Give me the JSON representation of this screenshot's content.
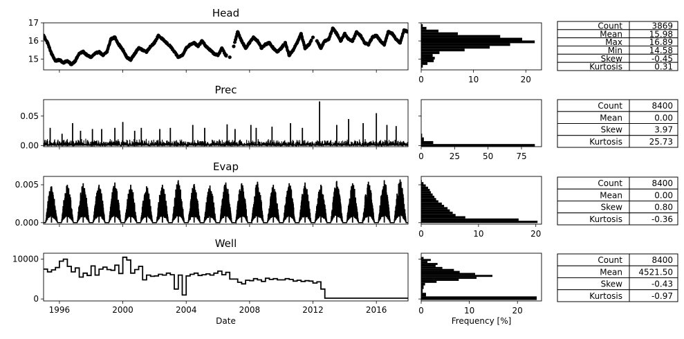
{
  "chart_data": [
    {
      "type": "line",
      "title": "Head",
      "xlabel": "",
      "ylabel": "",
      "x_range": [
        "1995-01-01",
        "2018-01-01"
      ],
      "ylim": [
        14.4,
        17.0
      ],
      "yticks": [
        "15",
        "16",
        "17"
      ],
      "series": [
        {
          "style": "markers",
          "x": [
            "1995-01",
            "1995-04",
            "1995-07",
            "1995-10",
            "1996-01",
            "1996-04",
            "1996-07",
            "1996-10",
            "1997-01",
            "1997-04",
            "1997-07",
            "1997-10",
            "1998-01",
            "1998-04",
            "1998-07",
            "1998-10",
            "1999-01",
            "1999-04",
            "1999-07",
            "1999-10",
            "2000-01",
            "2000-04",
            "2000-07",
            "2000-10",
            "2001-01",
            "2001-04",
            "2001-07",
            "2001-10",
            "2002-01",
            "2002-04",
            "2002-07",
            "2002-10",
            "2003-01",
            "2003-04",
            "2003-07",
            "2003-10",
            "2004-01",
            "2004-04",
            "2004-07",
            "2004-10",
            "2005-01",
            "2005-04",
            "2005-07",
            "2005-10",
            "2006-01",
            "2006-04",
            "2006-07",
            "2006-10",
            "2007-01",
            "2007-04",
            "2007-07",
            "2007-10",
            "2008-01",
            "2008-04",
            "2008-07",
            "2008-10",
            "2009-01",
            "2009-04",
            "2009-07",
            "2009-10",
            "2010-01",
            "2010-04",
            "2010-07",
            "2010-10",
            "2011-01",
            "2011-04",
            "2011-07",
            "2011-10",
            "2012-01",
            "2012-04",
            "2012-07",
            "2012-10",
            "2013-01",
            "2013-04",
            "2013-07",
            "2013-10",
            "2014-01",
            "2014-04",
            "2014-07",
            "2014-10",
            "2015-01",
            "2015-04",
            "2015-07",
            "2015-10",
            "2016-01",
            "2016-04",
            "2016-07",
            "2016-10",
            "2017-01",
            "2017-04",
            "2017-07",
            "2017-10",
            "2018-01"
          ],
          "y": [
            16.3,
            15.9,
            15.3,
            14.9,
            14.95,
            14.8,
            14.9,
            14.7,
            14.9,
            15.3,
            15.4,
            15.2,
            15.1,
            15.3,
            15.4,
            15.2,
            15.4,
            16.1,
            16.2,
            15.8,
            15.5,
            15.1,
            14.95,
            15.3,
            15.6,
            15.5,
            15.4,
            15.7,
            15.9,
            16.3,
            16.1,
            15.9,
            15.7,
            15.4,
            15.1,
            15.2,
            15.6,
            15.8,
            15.9,
            15.7,
            16.0,
            15.7,
            15.5,
            15.3,
            15.2,
            15.6,
            15.2,
            15.1,
            15.7,
            16.5,
            16.0,
            15.6,
            15.9,
            16.2,
            16.0,
            15.6,
            15.8,
            15.9,
            15.6,
            15.4,
            15.6,
            15.9,
            15.2,
            15.5,
            15.9,
            16.4,
            15.6,
            15.8,
            16.2,
            16.0,
            15.6,
            16.0,
            16.1,
            16.7,
            16.4,
            16.0,
            16.4,
            16.1,
            16.0,
            16.5,
            16.3,
            15.9,
            15.8,
            16.2,
            16.3,
            16.0,
            15.8,
            16.5,
            16.4,
            16.1,
            15.9,
            16.6,
            16.5
          ]
        }
      ]
    },
    {
      "type": "bar",
      "orientation": "horizontal",
      "title": "",
      "xlabel": "",
      "xlim": [
        0,
        23
      ],
      "xticks": [
        "0",
        "10",
        "20"
      ],
      "bins": [
        14.6,
        14.75,
        14.9,
        15.05,
        15.2,
        15.35,
        15.5,
        15.65,
        15.8,
        15.95,
        16.1,
        16.25,
        16.4,
        16.55,
        16.7,
        16.85
      ],
      "values": [
        0.3,
        1.2,
        2.4,
        2.6,
        2.2,
        3.5,
        8.3,
        13.1,
        17.0,
        21.7,
        19.3,
        15.1,
        7.0,
        3.3,
        1.0,
        0.3
      ]
    },
    {
      "type": "table",
      "rows": [
        {
          "label": "Count",
          "value": "3869"
        },
        {
          "label": "Mean",
          "value": "15.98"
        },
        {
          "label": "Max",
          "value": "16.89"
        },
        {
          "label": "Min",
          "value": "14.58"
        },
        {
          "label": "Skew",
          "value": "-0.45"
        },
        {
          "label": "Kurtosis",
          "value": "0.31"
        }
      ]
    },
    {
      "type": "line",
      "title": "Prec",
      "xlabel": "",
      "ylabel": "",
      "x_range": [
        "1995-01-01",
        "2018-01-01"
      ],
      "ylim": [
        -0.002,
        0.078
      ],
      "yticks": [
        "0.00",
        "0.05"
      ],
      "series": [
        {
          "style": "line",
          "x": [
            "1995-06",
            "1996-03",
            "1996-11",
            "1997-05",
            "1998-02",
            "1998-09",
            "1999-07",
            "2000-01",
            "2000-10",
            "2001-03",
            "2002-05",
            "2003-01",
            "2004-06",
            "2005-03",
            "2006-08",
            "2007-02",
            "2008-02",
            "2008-06",
            "2009-06",
            "2010-08",
            "2011-05",
            "2012-06",
            "2013-07",
            "2014-04",
            "2015-03",
            "2016-01",
            "2016-09",
            "2017-04"
          ],
          "y": [
            0.03,
            0.02,
            0.038,
            0.025,
            0.028,
            0.028,
            0.03,
            0.04,
            0.025,
            0.03,
            0.028,
            0.03,
            0.035,
            0.03,
            0.036,
            0.028,
            0.035,
            0.03,
            0.032,
            0.038,
            0.03,
            0.075,
            0.035,
            0.045,
            0.038,
            0.055,
            0.035,
            0.033
          ]
        }
      ]
    },
    {
      "type": "bar",
      "orientation": "horizontal",
      "title": "",
      "xlabel": "",
      "xlim": [
        0,
        90
      ],
      "xticks": [
        "0",
        "25",
        "50",
        "75"
      ],
      "bins": [
        0.0005,
        0.0045,
        0.0105,
        0.017
      ],
      "values": [
        85.0,
        9.0,
        2.0,
        0.7
      ]
    },
    {
      "type": "table",
      "rows": [
        {
          "label": "Count",
          "value": "8400"
        },
        {
          "label": "Mean",
          "value": "0.00"
        },
        {
          "label": "Skew",
          "value": "3.97"
        },
        {
          "label": "Kurtosis",
          "value": "25.73"
        }
      ]
    },
    {
      "type": "line",
      "title": "Evap",
      "xlabel": "",
      "ylabel": "",
      "x_range": [
        "1995-01-01",
        "2018-01-01"
      ],
      "ylim": [
        -0.0002,
        0.0061
      ],
      "yticks": [
        "0.000",
        "0.005"
      ],
      "series": [
        {
          "style": "seasonal",
          "x": [
            "1995",
            "1996",
            "1997",
            "1998",
            "1999",
            "2000",
            "2001",
            "2002",
            "2003",
            "2004",
            "2005",
            "2006",
            "2007",
            "2008",
            "2009",
            "2010",
            "2011",
            "2012",
            "2013",
            "2014",
            "2015",
            "2016",
            "2017"
          ],
          "y": [
            0.0048,
            0.005,
            0.0052,
            0.005,
            0.0053,
            0.005,
            0.0048,
            0.005,
            0.0056,
            0.0051,
            0.0049,
            0.0053,
            0.0052,
            0.0054,
            0.005,
            0.0052,
            0.0053,
            0.005,
            0.0055,
            0.0052,
            0.0054,
            0.0056,
            0.0057
          ]
        }
      ]
    },
    {
      "type": "bar",
      "orientation": "horizontal",
      "title": "",
      "xlabel": "",
      "xlim": [
        0,
        21
      ],
      "xticks": [
        "0",
        "10",
        "20"
      ],
      "bins": [
        0.0001,
        0.0004,
        0.0007,
        0.001,
        0.0013,
        0.0016,
        0.0019,
        0.0022,
        0.0025,
        0.0028,
        0.0031,
        0.0034,
        0.0037,
        0.004,
        0.0043,
        0.0046,
        0.0049,
        0.0052,
        0.0055
      ],
      "values": [
        20.3,
        17.0,
        7.7,
        6.0,
        5.5,
        5.0,
        4.6,
        4.0,
        3.6,
        3.0,
        2.6,
        2.3,
        2.0,
        1.7,
        1.5,
        1.2,
        0.8,
        0.4,
        0.1
      ]
    },
    {
      "type": "table",
      "rows": [
        {
          "label": "Count",
          "value": "8400"
        },
        {
          "label": "Mean",
          "value": "0.00"
        },
        {
          "label": "Skew",
          "value": "0.80"
        },
        {
          "label": "Kurtosis",
          "value": "-0.36"
        }
      ]
    },
    {
      "type": "line",
      "title": "Well",
      "xlabel": "Date",
      "ylabel": "",
      "x_range": [
        "1995-01-01",
        "2018-01-01"
      ],
      "ylim": [
        -500,
        11500
      ],
      "yticks": [
        "0",
        "10000"
      ],
      "xticks": [
        "1996",
        "2000",
        "2004",
        "2008",
        "2012",
        "2016"
      ],
      "series": [
        {
          "style": "step",
          "x": [
            "1995-01",
            "1995-04",
            "1995-07",
            "1995-10",
            "1996-01",
            "1996-04",
            "1996-07",
            "1996-10",
            "1997-01",
            "1997-04",
            "1997-07",
            "1997-10",
            "1998-01",
            "1998-04",
            "1998-07",
            "1998-10",
            "1999-01",
            "1999-04",
            "1999-07",
            "1999-10",
            "2000-01",
            "2000-04",
            "2000-07",
            "2000-10",
            "2001-01",
            "2001-04",
            "2001-07",
            "2001-10",
            "2002-01",
            "2002-04",
            "2002-07",
            "2002-10",
            "2003-01",
            "2003-04",
            "2003-07",
            "2003-10",
            "2004-01",
            "2004-04",
            "2004-07",
            "2004-10",
            "2005-01",
            "2005-04",
            "2005-07",
            "2005-10",
            "2006-01",
            "2006-04",
            "2006-07",
            "2006-10",
            "2007-01",
            "2007-04",
            "2007-07",
            "2007-10",
            "2008-01",
            "2008-04",
            "2008-07",
            "2008-10",
            "2009-01",
            "2009-04",
            "2009-07",
            "2009-10",
            "2010-01",
            "2010-04",
            "2010-07",
            "2010-10",
            "2011-01",
            "2011-04",
            "2011-07",
            "2011-10",
            "2012-01",
            "2012-04",
            "2012-07",
            "2012-10",
            "2018-01"
          ],
          "y": [
            7500,
            6800,
            7300,
            7900,
            9500,
            10000,
            8200,
            6800,
            7800,
            5500,
            6500,
            5900,
            8300,
            6000,
            7500,
            8000,
            7400,
            7200,
            8500,
            6400,
            10500,
            9800,
            6500,
            7400,
            8200,
            4800,
            6000,
            5700,
            5800,
            6200,
            6000,
            6500,
            6100,
            2500,
            6000,
            1000,
            5800,
            6200,
            6500,
            5900,
            6100,
            6300,
            6000,
            6500,
            7000,
            6100,
            6700,
            5000,
            5000,
            4200,
            3800,
            4700,
            4600,
            5100,
            4800,
            4400,
            5200,
            4900,
            5100,
            4800,
            4800,
            5100,
            4900,
            4500,
            4700,
            4400,
            4600,
            4500,
            4000,
            4300,
            2500,
            200,
            200
          ]
        }
      ]
    },
    {
      "type": "bar",
      "orientation": "horizontal",
      "title": "",
      "xlabel": "Frequency [%]",
      "xlim": [
        0,
        25
      ],
      "xticks": [
        "0",
        "10",
        "20"
      ],
      "bins": [
        200,
        1100,
        2000,
        3000,
        3800,
        4300,
        4800,
        5300,
        5800,
        6300,
        6800,
        7300,
        7800,
        8300,
        8800,
        9300,
        9800,
        10300
      ],
      "values": [
        24.0,
        1.0,
        0.3,
        0.5,
        0.8,
        3.2,
        7.8,
        11.5,
        14.8,
        11.2,
        8.0,
        6.8,
        4.4,
        3.0,
        3.4,
        1.3,
        2.0,
        0.5
      ]
    },
    {
      "type": "table",
      "rows": [
        {
          "label": "Count",
          "value": "8400"
        },
        {
          "label": "Mean",
          "value": "4521.50"
        },
        {
          "label": "Skew",
          "value": "-0.43"
        },
        {
          "label": "Kurtosis",
          "value": "-0.97"
        }
      ]
    }
  ]
}
